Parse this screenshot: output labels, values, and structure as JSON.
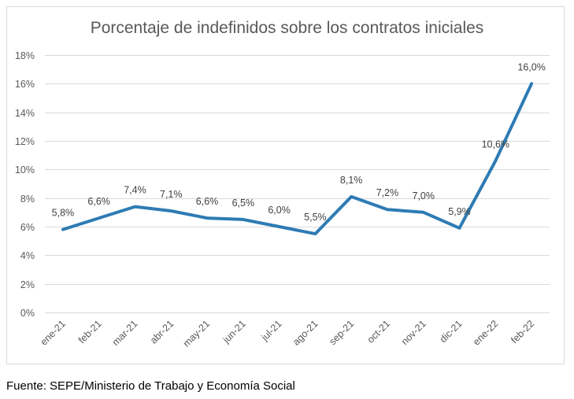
{
  "chart_data": {
    "type": "line",
    "title": "Porcentaje de indefinidos sobre los contratos iniciales",
    "xlabel": "",
    "ylabel": "",
    "categories": [
      "ene-21",
      "feb-21",
      "mar-21",
      "abr-21",
      "may-21",
      "jun-21",
      "jul-21",
      "ago-21",
      "sep-21",
      "oct-21",
      "nov-21",
      "dic-21",
      "ene-22",
      "feb-22"
    ],
    "series": [
      {
        "name": "Porcentaje de indefinidos",
        "values": [
          5.8,
          6.6,
          7.4,
          7.1,
          6.6,
          6.5,
          6.0,
          5.5,
          8.1,
          7.2,
          7.0,
          5.9,
          10.6,
          16.0
        ],
        "labels": [
          "5,8%",
          "6,6%",
          "7,4%",
          "7,1%",
          "6,6%",
          "6,5%",
          "6,0%",
          "5,5%",
          "8,1%",
          "7,2%",
          "7,0%",
          "5,9%",
          "10,6%",
          "16,0%"
        ],
        "color": "#2e7bb4"
      }
    ],
    "ylim": [
      0,
      18
    ],
    "yticks": [
      0,
      2,
      4,
      6,
      8,
      10,
      12,
      14,
      16,
      18
    ],
    "ytick_labels": [
      "0%",
      "2%",
      "4%",
      "6%",
      "8%",
      "10%",
      "12%",
      "14%",
      "16%",
      "18%"
    ],
    "grid": true,
    "legend": "none",
    "gridline_color": "#d9d9d9"
  },
  "source_note": "Fuente: SEPE/Ministerio de Trabajo y Economía Social"
}
